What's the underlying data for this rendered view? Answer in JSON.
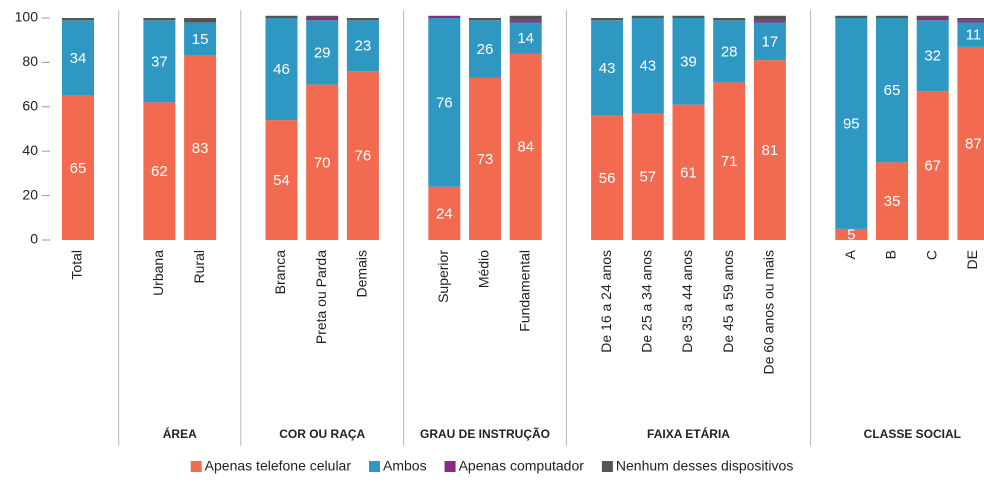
{
  "chart_data": {
    "type": "stacked_bar",
    "groups": [
      {
        "name": null,
        "categories": [
          "Total"
        ]
      },
      {
        "name": "ÁREA",
        "categories": [
          "Urbana",
          "Rural"
        ]
      },
      {
        "name": "COR OU RAÇA",
        "categories": [
          "Branca",
          "Preta ou Parda",
          "Demais"
        ]
      },
      {
        "name": "GRAU DE INSTRUÇÃO",
        "categories": [
          "Superior",
          "Médio",
          "Fundamental"
        ]
      },
      {
        "name": "FAIXA ETÁRIA",
        "categories": [
          "De 16 a 24 anos",
          "De 25 a 34 anos",
          "De 35 a 44 anos",
          "De 45 a 59 anos",
          "De 60 anos ou mais"
        ]
      },
      {
        "name": "CLASSE SOCIAL",
        "categories": [
          "A",
          "B",
          "C",
          "DE"
        ]
      }
    ],
    "series": [
      {
        "name": "Apenas telefone celular",
        "color": "#f26b50",
        "labels": true,
        "values": [
          65,
          62,
          83,
          54,
          70,
          76,
          24,
          73,
          84,
          56,
          57,
          61,
          71,
          81,
          5,
          35,
          67,
          87
        ]
      },
      {
        "name": "Ambos",
        "color": "#2e98c2",
        "labels": true,
        "values": [
          34,
          37,
          15,
          46,
          29,
          23,
          76,
          26,
          14,
          43,
          43,
          39,
          28,
          17,
          95,
          65,
          32,
          11
        ]
      },
      {
        "name": "Apenas computador",
        "color": "#8a2a86",
        "labels": false,
        "values": [
          0,
          0,
          0,
          0,
          1,
          0,
          1,
          0,
          1,
          0,
          0,
          0,
          0,
          1,
          0,
          0,
          1,
          1
        ]
      },
      {
        "name": "Nenhum desses dispositivos",
        "color": "#555555",
        "labels": false,
        "values": [
          1,
          1,
          2,
          1,
          1,
          1,
          0,
          1,
          2,
          1,
          1,
          1,
          1,
          2,
          1,
          1,
          1,
          1
        ]
      }
    ],
    "ylim": [
      0,
      100
    ],
    "yticks": [
      0,
      20,
      40,
      60,
      80,
      100
    ],
    "grid": false,
    "legend": "bottom"
  }
}
